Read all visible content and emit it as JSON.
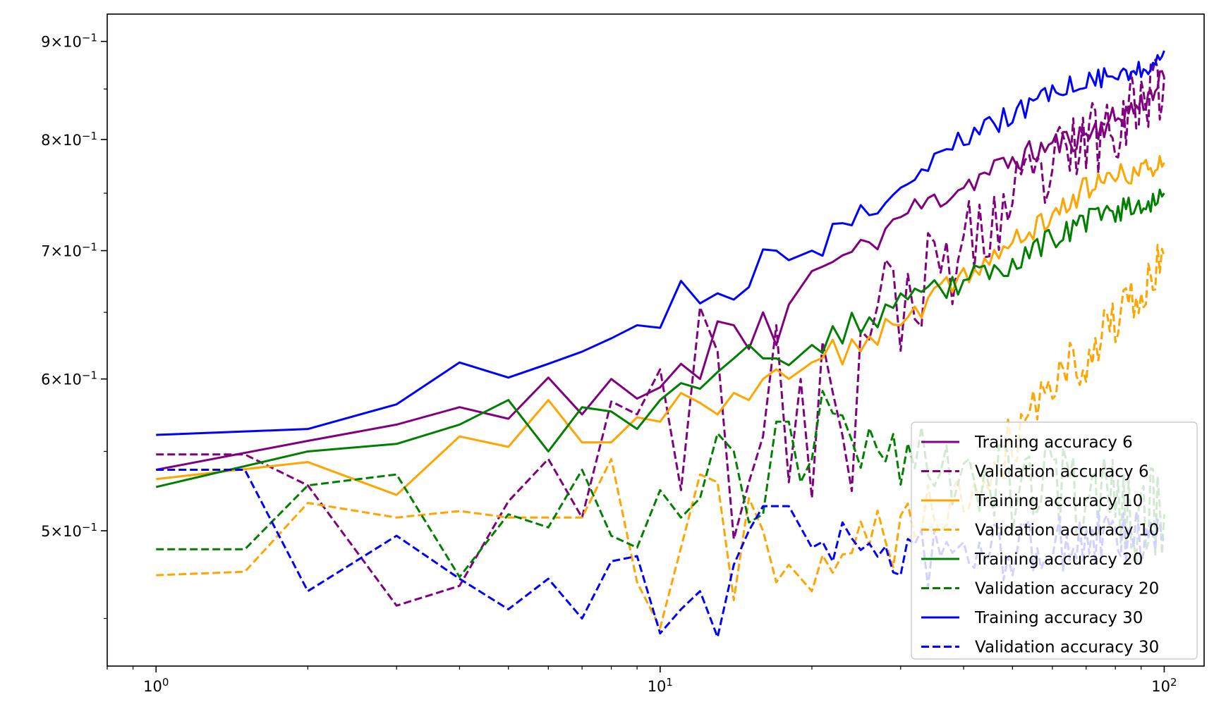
{
  "chart_data": {
    "type": "line",
    "xscale": "log",
    "yscale": "log",
    "xlim": [
      0.8,
      120
    ],
    "ylim": [
      0.425,
      0.93
    ],
    "grid": false,
    "legend_position": "lower-right",
    "xticks": [
      {
        "value": 1,
        "base": "10",
        "exp": "0"
      },
      {
        "value": 10,
        "base": "10",
        "exp": "1"
      },
      {
        "value": 100,
        "base": "10",
        "exp": "2"
      }
    ],
    "yticks": [
      {
        "value": 0.5,
        "mant": "5",
        "times": "×",
        "base": "10",
        "exp": "−1"
      },
      {
        "value": 0.6,
        "mant": "6",
        "times": "×",
        "base": "10",
        "exp": "−1"
      },
      {
        "value": 0.7,
        "mant": "7",
        "times": "×",
        "base": "10",
        "exp": "−1"
      },
      {
        "value": 0.8,
        "mant": "8",
        "times": "×",
        "base": "10",
        "exp": "−1"
      },
      {
        "value": 0.9,
        "mant": "9",
        "times": "×",
        "base": "10",
        "exp": "−1"
      }
    ],
    "series": [
      {
        "name": "Training accuracy 6",
        "color": "#800080",
        "style": "solid",
        "anchors": [
          [
            1,
            0.538
          ],
          [
            2,
            0.557
          ],
          [
            3,
            0.568
          ],
          [
            4,
            0.58
          ],
          [
            5,
            0.572
          ],
          [
            6,
            0.601
          ],
          [
            7,
            0.575
          ],
          [
            8,
            0.6
          ],
          [
            9,
            0.586
          ],
          [
            10,
            0.594
          ],
          [
            11,
            0.611
          ],
          [
            12,
            0.6
          ],
          [
            13,
            0.643
          ],
          [
            14,
            0.64
          ],
          [
            15,
            0.622
          ],
          [
            16,
            0.65
          ],
          [
            17,
            0.625
          ],
          [
            18,
            0.656
          ],
          [
            20,
            0.683
          ],
          [
            25,
            0.7
          ],
          [
            30,
            0.73
          ],
          [
            40,
            0.758
          ],
          [
            50,
            0.78
          ],
          [
            60,
            0.795
          ],
          [
            70,
            0.805
          ],
          [
            80,
            0.82
          ],
          [
            90,
            0.835
          ],
          [
            100,
            0.862
          ]
        ],
        "amp": 0.013,
        "seed": 11
      },
      {
        "name": "Validation accuracy 6",
        "color": "#800080",
        "style": "dashed",
        "anchors": [
          [
            1,
            0.548
          ],
          [
            1.5,
            0.548
          ],
          [
            2,
            0.528
          ],
          [
            3,
            0.457
          ],
          [
            4,
            0.468
          ],
          [
            5,
            0.518
          ],
          [
            6,
            0.545
          ],
          [
            7,
            0.508
          ],
          [
            8,
            0.584
          ],
          [
            9,
            0.575
          ],
          [
            10,
            0.607
          ],
          [
            11,
            0.525
          ],
          [
            12,
            0.654
          ],
          [
            13,
            0.62
          ],
          [
            14,
            0.495
          ],
          [
            15,
            0.53
          ],
          [
            16,
            0.56
          ],
          [
            17,
            0.64
          ],
          [
            18,
            0.53
          ],
          [
            19,
            0.6
          ],
          [
            20,
            0.52
          ],
          [
            21,
            0.66
          ],
          [
            22,
            0.625
          ],
          [
            23,
            0.55
          ],
          [
            24,
            0.54
          ],
          [
            25,
            0.65
          ],
          [
            30,
            0.66
          ],
          [
            40,
            0.7
          ],
          [
            50,
            0.74
          ],
          [
            60,
            0.77
          ],
          [
            70,
            0.8
          ],
          [
            80,
            0.82
          ],
          [
            90,
            0.84
          ],
          [
            100,
            0.862
          ]
        ],
        "amp": 0.04,
        "seed": 23
      },
      {
        "name": "Training accuracy 10",
        "color": "#ffa500",
        "style": "solid",
        "anchors": [
          [
            1,
            0.532
          ],
          [
            2,
            0.543
          ],
          [
            3,
            0.522
          ],
          [
            4,
            0.56
          ],
          [
            5,
            0.553
          ],
          [
            6,
            0.585
          ],
          [
            7,
            0.556
          ],
          [
            8,
            0.556
          ],
          [
            9,
            0.573
          ],
          [
            10,
            0.57
          ],
          [
            11,
            0.59
          ],
          [
            12,
            0.583
          ],
          [
            13,
            0.575
          ],
          [
            14,
            0.59
          ],
          [
            15,
            0.585
          ],
          [
            16,
            0.6
          ],
          [
            17,
            0.607
          ],
          [
            18,
            0.6
          ],
          [
            20,
            0.612
          ],
          [
            25,
            0.627
          ],
          [
            30,
            0.64
          ],
          [
            40,
            0.68
          ],
          [
            50,
            0.705
          ],
          [
            60,
            0.73
          ],
          [
            70,
            0.755
          ],
          [
            80,
            0.765
          ],
          [
            90,
            0.77
          ],
          [
            100,
            0.778
          ]
        ],
        "amp": 0.011,
        "seed": 37
      },
      {
        "name": "Validation accuracy 10",
        "color": "#ffa500",
        "style": "dashed",
        "anchors": [
          [
            1,
            0.474
          ],
          [
            1.5,
            0.476
          ],
          [
            2,
            0.517
          ],
          [
            3,
            0.508
          ],
          [
            4,
            0.512
          ],
          [
            5,
            0.508
          ],
          [
            6,
            0.508
          ],
          [
            7,
            0.508
          ],
          [
            8,
            0.545
          ],
          [
            9,
            0.47
          ],
          [
            10,
            0.445
          ],
          [
            11,
            0.49
          ],
          [
            12,
            0.535
          ],
          [
            13,
            0.53
          ],
          [
            14,
            0.46
          ],
          [
            15,
            0.52
          ],
          [
            16,
            0.5
          ],
          [
            17,
            0.47
          ],
          [
            18,
            0.48
          ],
          [
            20,
            0.465
          ],
          [
            25,
            0.49
          ],
          [
            30,
            0.5
          ],
          [
            40,
            0.52
          ],
          [
            50,
            0.56
          ],
          [
            60,
            0.6
          ],
          [
            70,
            0.62
          ],
          [
            80,
            0.645
          ],
          [
            90,
            0.66
          ],
          [
            100,
            0.695
          ]
        ],
        "amp": 0.022,
        "seed": 41
      },
      {
        "name": "Training accuracy 20",
        "color": "#008000",
        "style": "solid",
        "anchors": [
          [
            1,
            0.527
          ],
          [
            2,
            0.55
          ],
          [
            3,
            0.555
          ],
          [
            4,
            0.568
          ],
          [
            5,
            0.585
          ],
          [
            6,
            0.55
          ],
          [
            7,
            0.58
          ],
          [
            8,
            0.577
          ],
          [
            9,
            0.565
          ],
          [
            10,
            0.585
          ],
          [
            11,
            0.597
          ],
          [
            12,
            0.593
          ],
          [
            13,
            0.605
          ],
          [
            14,
            0.615
          ],
          [
            15,
            0.625
          ],
          [
            16,
            0.615
          ],
          [
            17,
            0.615
          ],
          [
            18,
            0.61
          ],
          [
            20,
            0.625
          ],
          [
            25,
            0.643
          ],
          [
            30,
            0.655
          ],
          [
            40,
            0.675
          ],
          [
            50,
            0.69
          ],
          [
            60,
            0.71
          ],
          [
            70,
            0.725
          ],
          [
            80,
            0.735
          ],
          [
            90,
            0.74
          ],
          [
            100,
            0.75
          ]
        ],
        "amp": 0.011,
        "seed": 53
      },
      {
        "name": "Validation accuracy 20",
        "color": "#008000",
        "style": "dashed",
        "anchors": [
          [
            1,
            0.489
          ],
          [
            1.5,
            0.489
          ],
          [
            2,
            0.528
          ],
          [
            3,
            0.535
          ],
          [
            4,
            0.473
          ],
          [
            5,
            0.51
          ],
          [
            6,
            0.502
          ],
          [
            7,
            0.538
          ],
          [
            8,
            0.497
          ],
          [
            9,
            0.49
          ],
          [
            10,
            0.525
          ],
          [
            11,
            0.508
          ],
          [
            12,
            0.52
          ],
          [
            13,
            0.562
          ],
          [
            14,
            0.55
          ],
          [
            15,
            0.505
          ],
          [
            16,
            0.51
          ],
          [
            17,
            0.57
          ],
          [
            18,
            0.57
          ],
          [
            19,
            0.53
          ],
          [
            20,
            0.545
          ],
          [
            22,
            0.58
          ],
          [
            25,
            0.55
          ],
          [
            30,
            0.55
          ],
          [
            40,
            0.54
          ],
          [
            50,
            0.53
          ],
          [
            60,
            0.525
          ],
          [
            70,
            0.52
          ],
          [
            80,
            0.515
          ],
          [
            90,
            0.51
          ],
          [
            100,
            0.51
          ]
        ],
        "amp": 0.03,
        "seed": 67
      },
      {
        "name": "Training accuracy 30",
        "color": "#0000ff",
        "style": "solid",
        "anchors": [
          [
            1,
            0.561
          ],
          [
            2,
            0.565
          ],
          [
            3,
            0.582
          ],
          [
            4,
            0.612
          ],
          [
            5,
            0.601
          ],
          [
            6,
            0.611
          ],
          [
            7,
            0.62
          ],
          [
            8,
            0.63
          ],
          [
            9,
            0.64
          ],
          [
            10,
            0.638
          ],
          [
            11,
            0.675
          ],
          [
            12,
            0.657
          ],
          [
            13,
            0.665
          ],
          [
            14,
            0.66
          ],
          [
            15,
            0.67
          ],
          [
            16,
            0.701
          ],
          [
            17,
            0.7
          ],
          [
            18,
            0.692
          ],
          [
            20,
            0.7
          ],
          [
            25,
            0.73
          ],
          [
            30,
            0.76
          ],
          [
            40,
            0.8
          ],
          [
            50,
            0.825
          ],
          [
            60,
            0.845
          ],
          [
            70,
            0.86
          ],
          [
            80,
            0.865
          ],
          [
            90,
            0.87
          ],
          [
            100,
            0.89
          ]
        ],
        "amp": 0.011,
        "seed": 79
      },
      {
        "name": "Validation accuracy 30",
        "color": "#0000ff",
        "style": "dashed",
        "anchors": [
          [
            1,
            0.538
          ],
          [
            1.5,
            0.538
          ],
          [
            2,
            0.465
          ],
          [
            3,
            0.497
          ],
          [
            4,
            0.472
          ],
          [
            5,
            0.455
          ],
          [
            6,
            0.472
          ],
          [
            7,
            0.45
          ],
          [
            8,
            0.482
          ],
          [
            9,
            0.485
          ],
          [
            10,
            0.442
          ],
          [
            11,
            0.455
          ],
          [
            12,
            0.465
          ],
          [
            13,
            0.44
          ],
          [
            14,
            0.48
          ],
          [
            15,
            0.5
          ],
          [
            16,
            0.515
          ],
          [
            17,
            0.515
          ],
          [
            18,
            0.515
          ],
          [
            20,
            0.49
          ],
          [
            25,
            0.495
          ],
          [
            30,
            0.485
          ],
          [
            40,
            0.485
          ],
          [
            50,
            0.49
          ],
          [
            60,
            0.49
          ],
          [
            70,
            0.495
          ],
          [
            80,
            0.495
          ],
          [
            90,
            0.495
          ],
          [
            100,
            0.495
          ]
        ],
        "amp": 0.018,
        "seed": 97
      }
    ]
  }
}
